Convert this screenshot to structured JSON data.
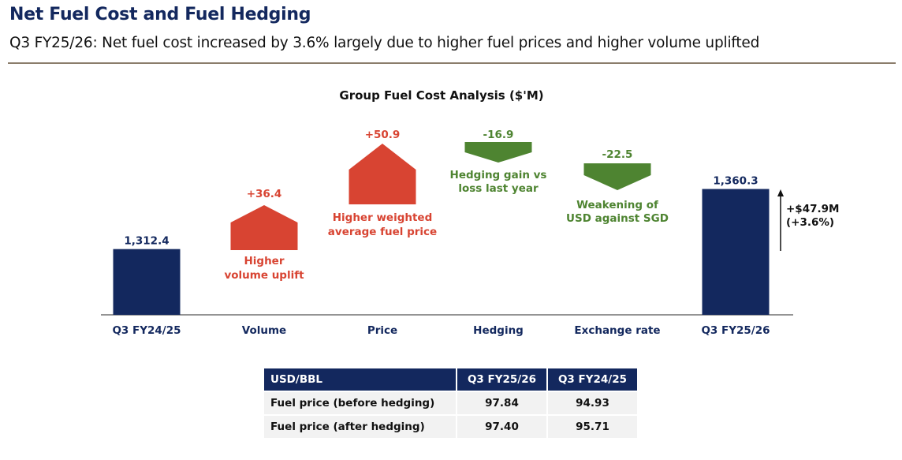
{
  "header": {
    "title": "Net Fuel Cost and Fuel Hedging",
    "subtitle": "Q3 FY25/26: Net fuel cost increased by 3.6% largely due to higher fuel prices and higher volume uplifted"
  },
  "colors": {
    "navy": "#13285E",
    "increase": "#D84432",
    "decrease": "#4E8431",
    "rule": "#8B7D6B"
  },
  "chart_data": {
    "type": "waterfall",
    "title": "Group Fuel Cost Analysis ($'M)",
    "categories": [
      "Q3 FY24/25",
      "Volume",
      "Price",
      "Hedging",
      "Exchange rate",
      "Q3 FY25/26"
    ],
    "values": [
      1312.4,
      36.4,
      50.9,
      -16.9,
      -22.5,
      1360.3
    ],
    "value_labels": [
      "1,312.4",
      "+36.4",
      "+50.9",
      "-16.9",
      "-22.5",
      "1,360.3"
    ],
    "kinds": [
      "total",
      "increase",
      "increase",
      "decrease",
      "decrease",
      "total"
    ],
    "annotations": [
      "",
      "Higher|volume uplift",
      "Higher weighted|average fuel price",
      "Hedging gain vs|loss last year",
      "Weakening of|USD against SGD",
      ""
    ],
    "change": {
      "amount": "+$47.9M",
      "percent": "(+3.6%)"
    }
  },
  "table": {
    "headers": [
      "USD/BBL",
      "Q3 FY25/26",
      "Q3 FY24/25"
    ],
    "rows": [
      [
        "Fuel price (before hedging)",
        "97.84",
        "94.93"
      ],
      [
        "Fuel price (after hedging)",
        "97.40",
        "95.71"
      ]
    ]
  }
}
